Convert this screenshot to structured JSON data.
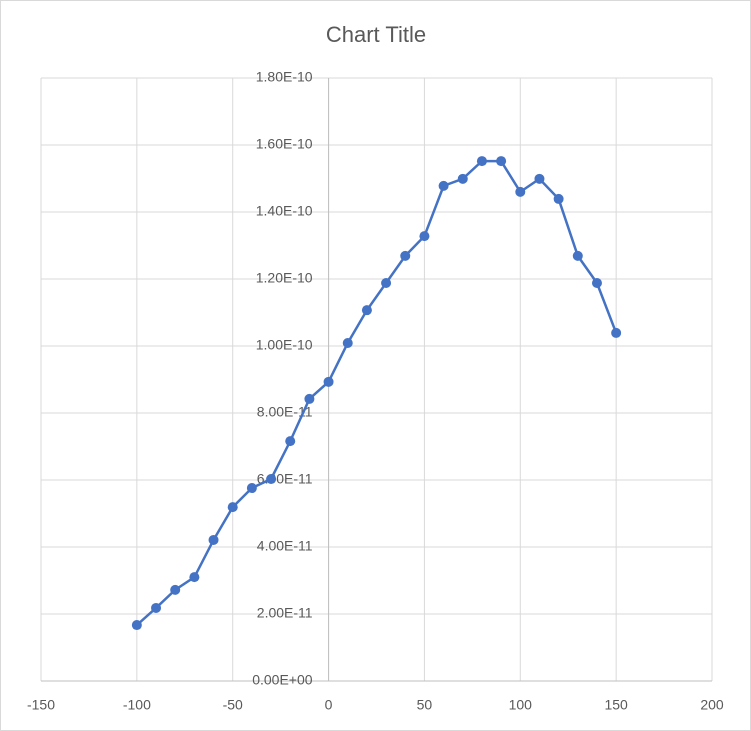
{
  "chart_data": {
    "type": "scatter",
    "title": "Chart Title",
    "x": [
      -100,
      -90,
      -80,
      -70,
      -60,
      -50,
      -40,
      -30,
      -20,
      -10,
      0,
      10,
      20,
      30,
      40,
      50,
      60,
      70,
      80,
      90,
      100,
      110,
      120,
      130,
      140,
      150
    ],
    "series": [
      {
        "color": "#4472c4",
        "values": [
          1.67e-11,
          2.18e-11,
          2.72e-11,
          3.1e-11,
          4.21e-11,
          5.19e-11,
          5.76e-11,
          6.03e-11,
          7.16e-11,
          8.42e-11,
          8.93e-11,
          1.009e-10,
          1.107e-10,
          1.188e-10,
          1.269e-10,
          1.328e-10,
          1.478e-10,
          1.499e-10,
          1.552e-10,
          1.552e-10,
          1.46e-10,
          1.499e-10,
          1.439e-10,
          1.269e-10,
          1.188e-10,
          1.039e-10
        ]
      }
    ],
    "xlim": [
      -150,
      200
    ],
    "xticks": [
      -150,
      -100,
      -50,
      0,
      50,
      100,
      150,
      200
    ],
    "ylim": [
      0,
      1.8e-10
    ],
    "yticks": [
      {
        "value": 0,
        "label": "0.00E+00"
      },
      {
        "value": 2e-11,
        "label": "2.00E-11"
      },
      {
        "value": 4e-11,
        "label": "4.00E-11"
      },
      {
        "value": 6e-11,
        "label": "6.00E-11"
      },
      {
        "value": 8e-11,
        "label": "8.00E-11"
      },
      {
        "value": 1e-10,
        "label": "1.00E-10"
      },
      {
        "value": 1.2e-10,
        "label": "1.20E-10"
      },
      {
        "value": 1.4e-10,
        "label": "1.40E-10"
      },
      {
        "value": 1.6e-10,
        "label": "1.60E-10"
      },
      {
        "value": 1.8e-10,
        "label": "1.80E-10"
      }
    ],
    "grid": true
  }
}
